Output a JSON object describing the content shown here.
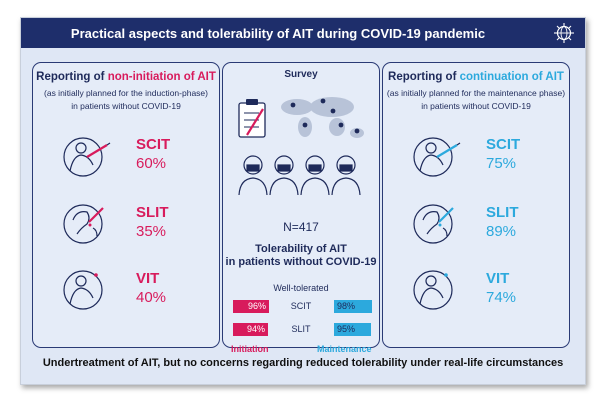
{
  "title": "Practical aspects and tolerability of AIT during COVID-19 pandemic",
  "left_panel": {
    "heading_prefix": "Reporting of ",
    "heading_highlight": "non-initiation of AIT",
    "subtitle_line1": "(as initially planned for the induction-phase)",
    "subtitle_line2": "in patients without COVID-19",
    "items": [
      {
        "label": "SCIT",
        "value": "60%",
        "icon": "injection-arm-icon"
      },
      {
        "label": "SLIT",
        "value": "35%",
        "icon": "sublingual-drops-icon"
      },
      {
        "label": "VIT",
        "value": "40%",
        "icon": "bee-sting-arm-icon"
      }
    ]
  },
  "center_panel": {
    "survey_label": "Survey",
    "n_label": "N=417",
    "tolerability_line1": "Tolerability of AIT",
    "tolerability_line2": "in patients without COVID-19",
    "well_tolerated": "Well-tolerated",
    "rows": [
      {
        "label": "SCIT",
        "initiation": "96%",
        "maintenance": "98%"
      },
      {
        "label": "SLIT",
        "initiation": "94%",
        "maintenance": "95%"
      }
    ],
    "legend_initiation": "Initiation",
    "legend_maintenance": "Maintenance"
  },
  "right_panel": {
    "heading_prefix": "Reporting of ",
    "heading_highlight": "continuation of AIT",
    "subtitle_line1": "(as initially planned for the maintenance phase)",
    "subtitle_line2": "in patients without COVID-19",
    "items": [
      {
        "label": "SCIT",
        "value": "75%",
        "icon": "injection-arm-icon"
      },
      {
        "label": "SLIT",
        "value": "89%",
        "icon": "sublingual-drops-icon"
      },
      {
        "label": "VIT",
        "value": "74%",
        "icon": "bee-sting-arm-icon"
      }
    ]
  },
  "footer": "Undertreatment of AIT, but no concerns regarding reduced tolerability under real-life circumstances",
  "colors": {
    "navy": "#1e2e6b",
    "pink": "#d81b5c",
    "cyan": "#2ca9dd",
    "panel_bg": "#e5ecf8"
  }
}
